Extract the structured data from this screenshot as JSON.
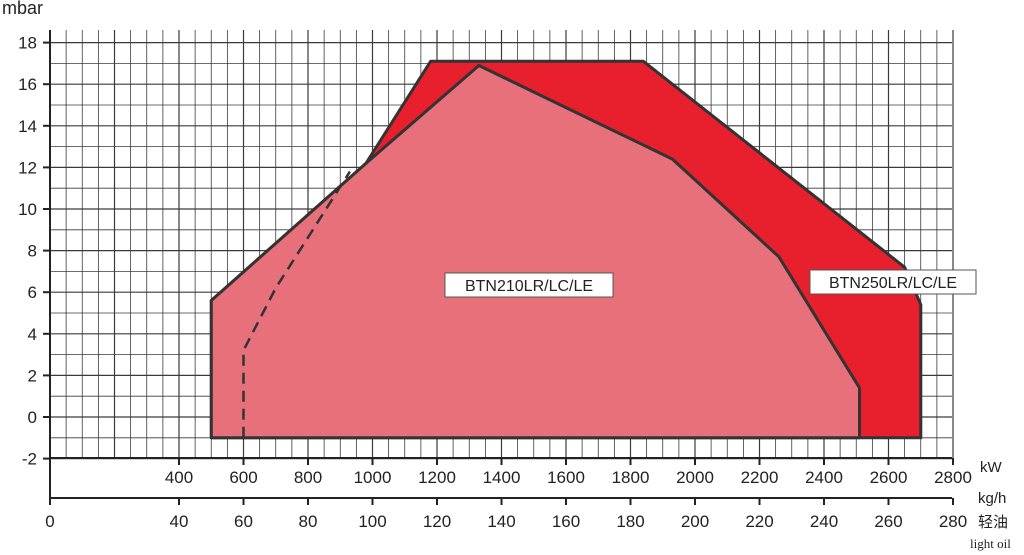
{
  "chart_data": {
    "type": "area",
    "title": "",
    "ylabel": "mbar",
    "x_axes": [
      {
        "unit": "kW",
        "range": [
          0,
          2800
        ],
        "ticks": [
          "400",
          "600",
          "800",
          "1000",
          "1200",
          "1400",
          "1600",
          "1800",
          "2000",
          "2200",
          "2400",
          "2600",
          "2800"
        ]
      },
      {
        "unit": "kg/h",
        "unit_lines": [
          "轻油",
          "light oil"
        ],
        "range": [
          0,
          280
        ],
        "ticks": [
          "0",
          "40",
          "60",
          "80",
          "100",
          "120",
          "140",
          "160",
          "180",
          "200",
          "220",
          "240",
          "260",
          "280"
        ]
      }
    ],
    "ylim": [
      -2,
      18
    ],
    "yticks": [
      "18",
      "16",
      "14",
      "12",
      "10",
      "8",
      "6",
      "4",
      "2",
      "0",
      "-2"
    ],
    "grid": true,
    "series": [
      {
        "name": "BTN250LR/LC/LE",
        "color": "#e8202e",
        "points_kw_mbar": [
          [
            500,
            -1
          ],
          [
            500,
            5.6
          ],
          [
            980,
            12.2
          ],
          [
            1180,
            17.1
          ],
          [
            1840,
            17.1
          ],
          [
            2650,
            7.2
          ],
          [
            2700,
            5.4
          ],
          [
            2700,
            -1
          ]
        ]
      },
      {
        "name": "BTN210LR/LC/LE",
        "color": "#e8707a",
        "points_kw_mbar": [
          [
            500,
            -1
          ],
          [
            500,
            5.6
          ],
          [
            980,
            12.2
          ],
          [
            1330,
            16.9
          ],
          [
            1930,
            12.4
          ],
          [
            2260,
            7.7
          ],
          [
            2510,
            1.4
          ],
          [
            2510,
            -1
          ]
        ]
      }
    ],
    "dashed_line_kw_mbar": [
      [
        600,
        -1
      ],
      [
        600,
        3.2
      ],
      [
        700,
        6.2
      ],
      [
        930,
        11.8
      ]
    ]
  }
}
